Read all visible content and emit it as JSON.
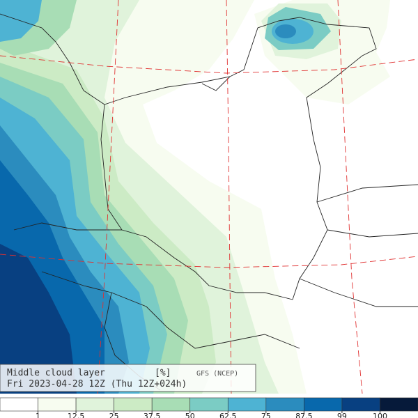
{
  "title": "Middle cloud layer",
  "unit": "[%]",
  "source": "GFS (NCEP)",
  "valid_time": "Fri 2023-04-28 12Z (Thu 12Z+024h)",
  "colorbar": {
    "levels": [
      1,
      12.5,
      25,
      37.5,
      50,
      62.5,
      75,
      87.5,
      99,
      100
    ],
    "colors": [
      "#ffffff",
      "#f7fcf0",
      "#e0f3db",
      "#ccebc5",
      "#a8ddb5",
      "#7bccc4",
      "#4eb3d3",
      "#2b8cbe",
      "#0868ac",
      "#084081",
      "#061a3a"
    ]
  }
}
